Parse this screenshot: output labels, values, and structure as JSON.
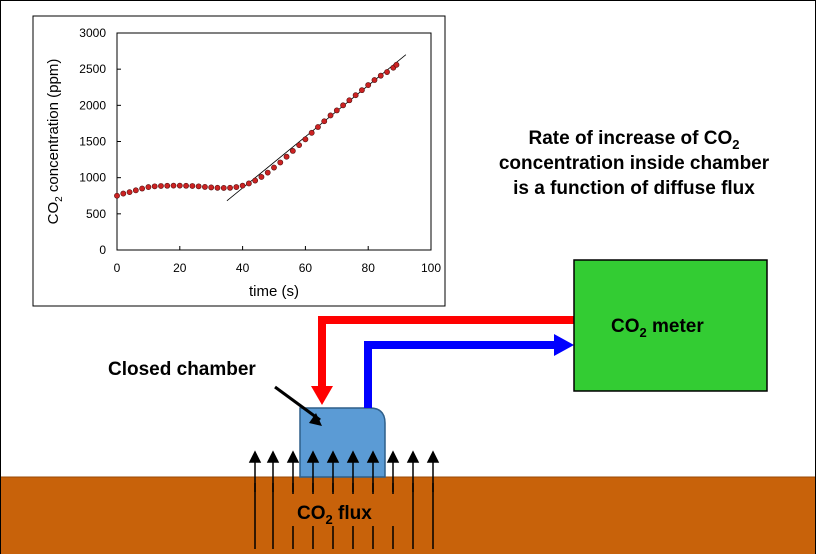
{
  "chart_data": {
    "type": "scatter",
    "xlabel": "time (s)",
    "ylabel_main": "CO",
    "ylabel_sub": "2",
    "ylabel_rest": " concentration (ppm)",
    "xlim": [
      0,
      100
    ],
    "ylim": [
      0,
      3000
    ],
    "x_ticks": [
      "0",
      "20",
      "40",
      "60",
      "80",
      "100"
    ],
    "y_ticks": [
      "0",
      "500",
      "1000",
      "1500",
      "2000",
      "2500",
      "3000"
    ],
    "grid": false,
    "legend": "none",
    "series": [
      {
        "color": "#cc2222",
        "points": [
          [
            0,
            750
          ],
          [
            2,
            780
          ],
          [
            4,
            800
          ],
          [
            6,
            825
          ],
          [
            8,
            850
          ],
          [
            10,
            870
          ],
          [
            12,
            880
          ],
          [
            14,
            885
          ],
          [
            16,
            888
          ],
          [
            18,
            890
          ],
          [
            20,
            890
          ],
          [
            22,
            888
          ],
          [
            24,
            885
          ],
          [
            26,
            880
          ],
          [
            28,
            872
          ],
          [
            30,
            865
          ],
          [
            32,
            860
          ],
          [
            34,
            858
          ],
          [
            36,
            860
          ],
          [
            38,
            870
          ],
          [
            40,
            890
          ],
          [
            42,
            920
          ],
          [
            44,
            960
          ],
          [
            46,
            1010
          ],
          [
            48,
            1070
          ],
          [
            50,
            1140
          ],
          [
            52,
            1210
          ],
          [
            54,
            1290
          ],
          [
            56,
            1370
          ],
          [
            58,
            1450
          ],
          [
            60,
            1530
          ],
          [
            62,
            1620
          ],
          [
            64,
            1700
          ],
          [
            66,
            1780
          ],
          [
            68,
            1860
          ],
          [
            70,
            1930
          ],
          [
            72,
            2000
          ],
          [
            74,
            2070
          ],
          [
            76,
            2140
          ],
          [
            78,
            2210
          ],
          [
            80,
            2280
          ],
          [
            82,
            2350
          ],
          [
            84,
            2410
          ],
          [
            86,
            2460
          ],
          [
            88,
            2520
          ],
          [
            89,
            2560
          ]
        ]
      }
    ],
    "trendline": {
      "x": [
        35,
        92
      ],
      "y": [
        680,
        2700
      ]
    }
  },
  "diagram": {
    "headline": [
      "Rate of increase of CO",
      "concentration inside chamber",
      "is a function of diffuse flux"
    ],
    "headline_sub": "2",
    "meter_label": "CO",
    "meter_sub": "2",
    "meter_rest": " meter",
    "chamber_label": "Closed chamber",
    "flux_label": "CO",
    "flux_sub": "2",
    "flux_rest": " flux",
    "colors": {
      "soil": "#c8620a",
      "meter": "#33cc33",
      "chamber": "#5b9bd5",
      "pipe_in": "#ff0000",
      "pipe_out": "#0000ff",
      "points": "#cc2222"
    }
  }
}
